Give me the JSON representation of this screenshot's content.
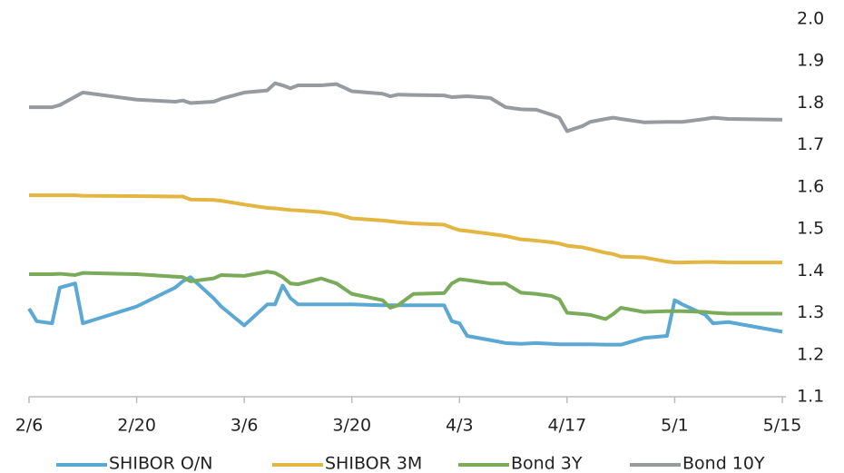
{
  "chart_data": {
    "type": "line",
    "x": [
      0,
      1,
      3,
      4,
      6,
      7,
      14,
      19,
      20,
      21,
      24,
      25,
      28,
      31,
      32,
      33,
      34,
      35,
      38,
      40,
      42,
      46,
      47,
      48,
      50,
      54,
      55,
      56,
      57,
      60,
      62,
      64,
      66,
      68,
      69,
      70,
      72,
      73,
      75,
      76,
      77,
      80,
      83,
      84,
      85,
      88,
      89,
      91,
      98
    ],
    "xlim": [
      0,
      98
    ],
    "xticks": [
      {
        "value": 0,
        "label": "2/6"
      },
      {
        "value": 14,
        "label": "2/20"
      },
      {
        "value": 28,
        "label": "3/6"
      },
      {
        "value": 42,
        "label": "3/20"
      },
      {
        "value": 56,
        "label": "4/3"
      },
      {
        "value": 70,
        "label": "4/17"
      },
      {
        "value": 84,
        "label": "5/1"
      },
      {
        "value": 98,
        "label": "5/15"
      }
    ],
    "ylim": [
      1.1,
      2.0
    ],
    "yticks": [
      1.1,
      1.2,
      1.3,
      1.4,
      1.5,
      1.6,
      1.7,
      1.8,
      1.9,
      {
        "value": 2.0,
        "label": "2.0"
      }
    ],
    "grid": false,
    "legend": "bottom",
    "series": [
      {
        "name": "SHIBOR O/N",
        "color": "#5ba8d4",
        "values": [
          1.31,
          1.28,
          1.275,
          1.36,
          1.37,
          1.275,
          1.315,
          1.36,
          1.375,
          1.385,
          1.335,
          1.315,
          1.27,
          1.32,
          1.32,
          1.365,
          1.335,
          1.32,
          1.32,
          1.32,
          1.32,
          1.318,
          1.318,
          1.318,
          1.318,
          1.318,
          1.28,
          1.275,
          1.245,
          1.235,
          1.228,
          1.226,
          1.228,
          1.226,
          1.225,
          1.225,
          1.225,
          1.225,
          1.224,
          1.224,
          1.224,
          1.24,
          1.245,
          1.33,
          1.32,
          1.295,
          1.275,
          1.278,
          1.255
        ]
      },
      {
        "name": "SHIBOR 3M",
        "color": "#e3b541",
        "values": [
          1.58,
          1.58,
          1.58,
          1.58,
          1.58,
          1.579,
          1.578,
          1.577,
          1.577,
          1.57,
          1.569,
          1.567,
          1.558,
          1.55,
          1.549,
          1.547,
          1.545,
          1.544,
          1.54,
          1.535,
          1.525,
          1.52,
          1.518,
          1.516,
          1.513,
          1.51,
          1.503,
          1.497,
          1.495,
          1.488,
          1.483,
          1.475,
          1.472,
          1.468,
          1.465,
          1.46,
          1.456,
          1.452,
          1.443,
          1.44,
          1.434,
          1.432,
          1.422,
          1.42,
          1.42,
          1.421,
          1.421,
          1.42,
          1.42
        ]
      },
      {
        "name": "Bond 3Y",
        "color": "#7aab5a",
        "values": [
          1.392,
          1.392,
          1.392,
          1.393,
          1.39,
          1.395,
          1.392,
          1.386,
          1.385,
          1.375,
          1.382,
          1.39,
          1.388,
          1.398,
          1.395,
          1.385,
          1.37,
          1.368,
          1.382,
          1.37,
          1.345,
          1.33,
          1.312,
          1.318,
          1.345,
          1.347,
          1.37,
          1.38,
          1.378,
          1.37,
          1.37,
          1.348,
          1.345,
          1.34,
          1.332,
          1.3,
          1.297,
          1.295,
          1.285,
          1.297,
          1.312,
          1.302,
          1.304,
          1.304,
          1.304,
          1.302,
          1.3,
          1.298,
          1.298
        ]
      },
      {
        "name": "Bond 10Y",
        "color": "#979b9f",
        "values": [
          1.79,
          1.79,
          1.79,
          1.795,
          1.815,
          1.825,
          1.808,
          1.803,
          1.806,
          1.8,
          1.803,
          1.81,
          1.825,
          1.83,
          1.847,
          1.842,
          1.835,
          1.842,
          1.842,
          1.845,
          1.828,
          1.822,
          1.816,
          1.82,
          1.819,
          1.818,
          1.814,
          1.815,
          1.816,
          1.812,
          1.79,
          1.785,
          1.784,
          1.772,
          1.765,
          1.733,
          1.745,
          1.755,
          1.762,
          1.765,
          1.762,
          1.754,
          1.755,
          1.755,
          1.755,
          1.762,
          1.765,
          1.762,
          1.76
        ]
      }
    ]
  }
}
